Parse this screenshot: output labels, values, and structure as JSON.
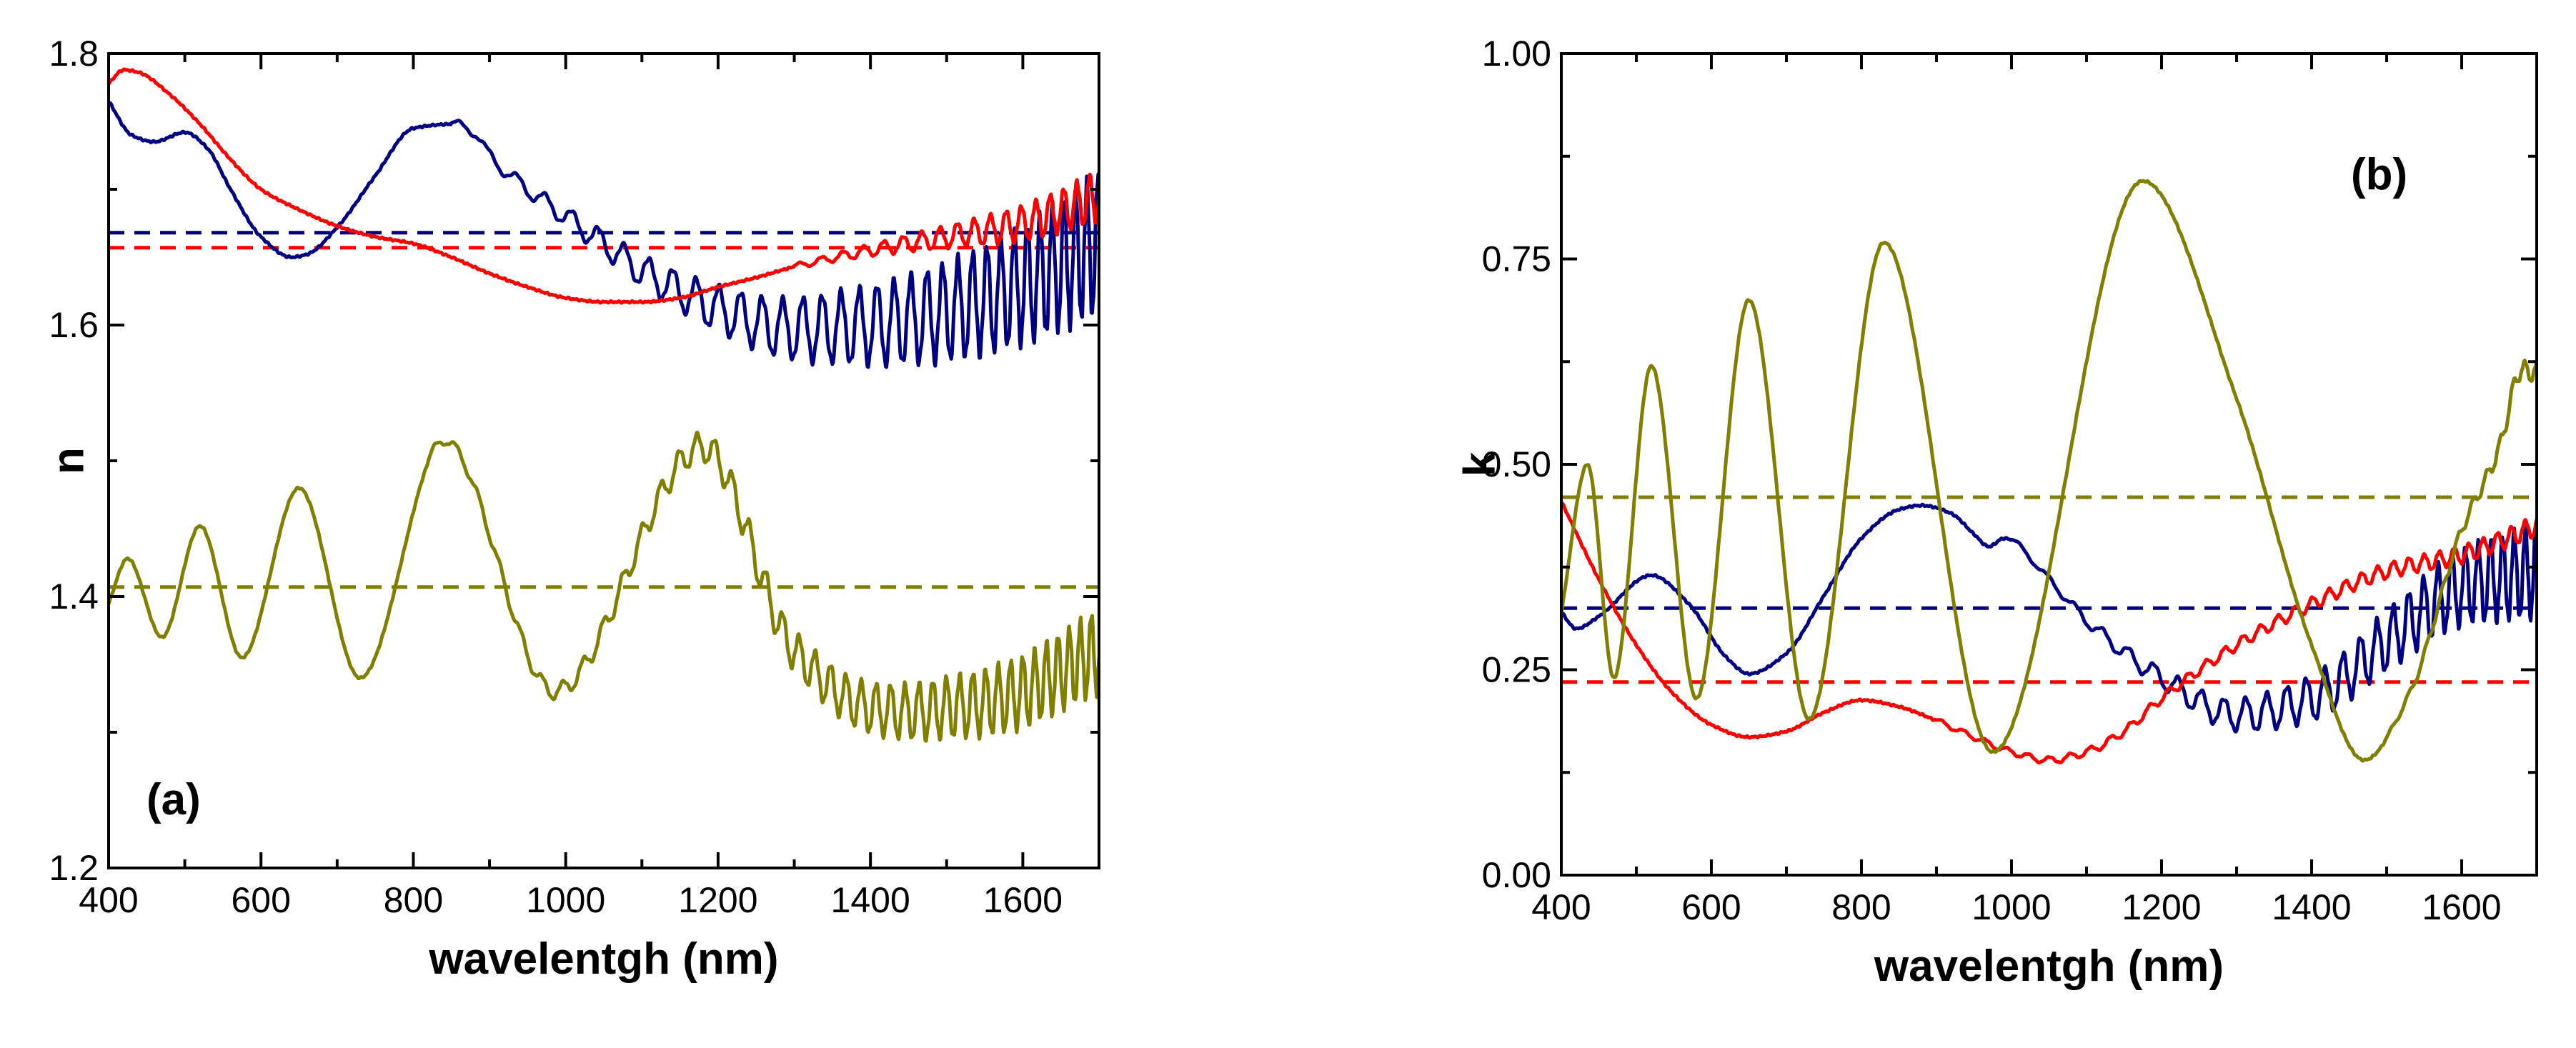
{
  "chart_data": [
    {
      "type": "line",
      "panel_label": "(a)",
      "panel_label_placement": "bottom-left",
      "xlabel": "wavelentgh (nm)",
      "ylabel": "n",
      "xlim": [
        400,
        1700
      ],
      "ylim": [
        1.2,
        1.8
      ],
      "x_ticks": [
        400,
        600,
        800,
        1000,
        1200,
        1400,
        1600
      ],
      "x_tick_labels": [
        "400",
        "600",
        "800",
        "1000",
        "1200",
        "1400",
        "1600"
      ],
      "y_ticks": [
        1.2,
        1.4,
        1.6,
        1.8
      ],
      "y_tick_labels": [
        "1.2",
        "1.4",
        "1.6",
        "1.8"
      ],
      "grid": false,
      "series": [
        {
          "name": "navy",
          "color": "#000080",
          "noise": {
            "start": 850,
            "amp_start": 0.003,
            "amp_end": 0.05,
            "period_start": 40,
            "period_end": 14
          },
          "x": [
            400,
            430,
            460,
            500,
            530,
            560,
            600,
            640,
            660,
            700,
            750,
            800,
            850,
            880,
            900,
            950,
            1000,
            1050,
            1100,
            1150,
            1200,
            1300,
            1400,
            1500,
            1600,
            1700
          ],
          "y": [
            1.765,
            1.74,
            1.735,
            1.742,
            1.73,
            1.7,
            1.665,
            1.65,
            1.652,
            1.672,
            1.71,
            1.745,
            1.748,
            1.742,
            1.725,
            1.7,
            1.68,
            1.66,
            1.64,
            1.625,
            1.612,
            1.597,
            1.6,
            1.61,
            1.63,
            1.66
          ]
        },
        {
          "name": "red",
          "color": "#ff0000",
          "noise": {
            "start": 1300,
            "amp_start": 0.002,
            "amp_end": 0.018,
            "period_start": 30,
            "period_end": 16
          },
          "x": [
            400,
            420,
            440,
            480,
            520,
            560,
            600,
            650,
            700,
            750,
            800,
            850,
            900,
            950,
            1000,
            1050,
            1100,
            1150,
            1200,
            1250,
            1300,
            1400,
            1500,
            1600,
            1700
          ],
          "y": [
            1.778,
            1.788,
            1.786,
            1.77,
            1.748,
            1.722,
            1.7,
            1.685,
            1.673,
            1.665,
            1.66,
            1.65,
            1.638,
            1.628,
            1.62,
            1.617,
            1.617,
            1.62,
            1.628,
            1.635,
            1.643,
            1.655,
            1.665,
            1.675,
            1.695
          ]
        },
        {
          "name": "olive",
          "color": "#808000",
          "noise": {
            "start": 820,
            "amp_start": 0.003,
            "amp_end": 0.03,
            "period_start": 30,
            "period_end": 14
          },
          "x": [
            400,
            425,
            470,
            520,
            575,
            650,
            730,
            840,
            985,
            1180,
            1300,
            1400,
            1450,
            1500,
            1550,
            1600,
            1650,
            1700
          ],
          "y": [
            1.395,
            1.428,
            1.37,
            1.452,
            1.355,
            1.48,
            1.34,
            1.515,
            1.33,
            1.51,
            1.36,
            1.318,
            1.315,
            1.318,
            1.322,
            1.33,
            1.345,
            1.36
          ]
        }
      ],
      "reference_lines": [
        {
          "name": "navy-mean",
          "color": "#000080",
          "y": 1.668
        },
        {
          "name": "red-mean",
          "color": "#ff0000",
          "y": 1.657
        },
        {
          "name": "olive-mean",
          "color": "#808000",
          "y": 1.407
        }
      ]
    },
    {
      "type": "line",
      "panel_label": "(b)",
      "panel_label_placement": "top-right",
      "xlabel": "wavelentgh (nm)",
      "ylabel": "k",
      "xlim": [
        400,
        1700
      ],
      "ylim": [
        0.0,
        1.0
      ],
      "x_ticks": [
        400,
        600,
        800,
        1000,
        1200,
        1400,
        1600
      ],
      "x_tick_labels": [
        "400",
        "600",
        "800",
        "1000",
        "1200",
        "1400",
        "1600"
      ],
      "y_ticks": [
        0.0,
        0.25,
        0.5,
        0.75,
        1.0
      ],
      "y_tick_labels": [
        "0.00",
        "0.25",
        "0.50",
        "0.75",
        "1.00"
      ],
      "grid": false,
      "series": [
        {
          "name": "navy",
          "color": "#000080",
          "noise": {
            "start": 1000,
            "amp_start": 0.003,
            "amp_end": 0.055,
            "period_start": 40,
            "period_end": 14
          },
          "x": [
            400,
            420,
            450,
            520,
            570,
            620,
            650,
            700,
            750,
            800,
            850,
            880,
            920,
            950,
            970,
            990,
            1050,
            1100,
            1200,
            1300,
            1400,
            1500,
            1600,
            1700
          ],
          "y": [
            0.32,
            0.3,
            0.315,
            0.365,
            0.33,
            0.265,
            0.245,
            0.27,
            0.34,
            0.41,
            0.445,
            0.45,
            0.44,
            0.415,
            0.4,
            0.41,
            0.36,
            0.31,
            0.24,
            0.195,
            0.215,
            0.285,
            0.35,
            0.37
          ]
        },
        {
          "name": "red",
          "color": "#ff0000",
          "noise": {
            "start": 900,
            "amp_start": 0.003,
            "amp_end": 0.012,
            "period_start": 30,
            "period_end": 18
          },
          "x": [
            400,
            450,
            500,
            550,
            600,
            650,
            700,
            750,
            800,
            850,
            900,
            950,
            1000,
            1050,
            1100,
            1150,
            1200,
            1300,
            1400,
            1500,
            1600,
            1700
          ],
          "y": [
            0.455,
            0.36,
            0.28,
            0.22,
            0.183,
            0.168,
            0.175,
            0.198,
            0.213,
            0.205,
            0.188,
            0.168,
            0.15,
            0.14,
            0.15,
            0.175,
            0.215,
            0.28,
            0.33,
            0.37,
            0.39,
            0.425
          ]
        },
        {
          "name": "olive",
          "color": "#808000",
          "noise": {
            "start": 1500,
            "amp_start": 0.003,
            "amp_end": 0.012,
            "period_start": 25,
            "period_end": 15
          },
          "x": [
            400,
            435,
            470,
            520,
            580,
            650,
            730,
            830,
            975,
            1175,
            1300,
            1400,
            1470,
            1530,
            1600,
            1650,
            1680,
            1700
          ],
          "y": [
            0.32,
            0.5,
            0.24,
            0.62,
            0.215,
            0.7,
            0.19,
            0.77,
            0.15,
            0.845,
            0.58,
            0.28,
            0.14,
            0.22,
            0.42,
            0.52,
            0.615,
            0.61
          ]
        }
      ],
      "reference_lines": [
        {
          "name": "olive-mean",
          "color": "#808000",
          "y": 0.46
        },
        {
          "name": "navy-mean",
          "color": "#000080",
          "y": 0.325
        },
        {
          "name": "red-mean",
          "color": "#ff0000",
          "y": 0.235
        }
      ]
    }
  ]
}
